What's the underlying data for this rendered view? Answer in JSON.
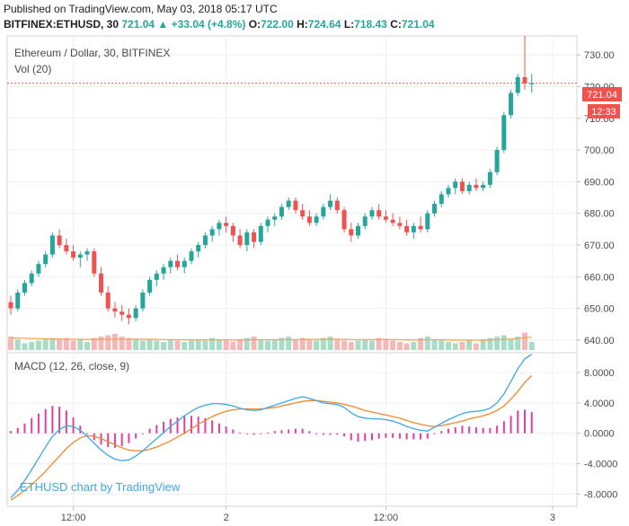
{
  "header": {
    "published": "Published on TradingView.com, May 03, 2018 05:17 UTC",
    "symbol": "BITFINEX:ETHUSD, 30",
    "last": "721.04",
    "change": "+33.04 (+4.8%)",
    "o_label": "O:",
    "o_value": "722.00",
    "h_label": "H:",
    "h_value": "724.64",
    "l_label": "L:",
    "l_value": "718.43",
    "c_label": "C:",
    "c_value": "721.04"
  },
  "main_pane": {
    "title": "Ethereum / Dollar, 30, BITFINEX",
    "vol_label": "Vol (20)",
    "price_tag": "721.04",
    "countdown_tag": "12:33"
  },
  "macd_pane": {
    "title": "MACD (12, 26, close, 9)",
    "watermark": "ETHUSD chart by TradingView"
  },
  "x_axis": {
    "ticks": [
      {
        "label": "12:00",
        "index": 9
      },
      {
        "label": "2",
        "index": 31
      },
      {
        "label": "12:00",
        "index": 54
      },
      {
        "label": "3",
        "index": 78
      }
    ]
  },
  "colors": {
    "up": "#26a69a",
    "down": "#ef5350",
    "vol_up": "#a8dcc7",
    "vol_down": "#f4b8b8",
    "vol_ma": "#f5a04a",
    "macd_line": "#3ea7e6",
    "signal_line": "#f2882d",
    "histogram": "#e040a0",
    "price_line": "#ef5350"
  },
  "chart_data": [
    {
      "type": "candlestick",
      "title": "Ethereum / Dollar, 30, BITFINEX",
      "ylim": [
        636,
        736
      ],
      "yticks": [
        640,
        650,
        660,
        670,
        680,
        690,
        700,
        710,
        720,
        730
      ],
      "ytick_labels": [
        "640.00",
        "650.00",
        "660.00",
        "670.00",
        "680.00",
        "690.00",
        "700.00",
        "710.00",
        "720.00",
        "730.00"
      ],
      "last_price": 721.04,
      "ohlc": [
        [
          652,
          654,
          648,
          650
        ],
        [
          650,
          656,
          649,
          655
        ],
        [
          655,
          659,
          654,
          658
        ],
        [
          658,
          662,
          657,
          661
        ],
        [
          661,
          665,
          660,
          664
        ],
        [
          664,
          668,
          663,
          667
        ],
        [
          667,
          674,
          666,
          673
        ],
        [
          673,
          675,
          669,
          670
        ],
        [
          670,
          672,
          667,
          668
        ],
        [
          668,
          670,
          665,
          666
        ],
        [
          666,
          668,
          663,
          667
        ],
        [
          667,
          669,
          665,
          668
        ],
        [
          668,
          669,
          660,
          661
        ],
        [
          661,
          663,
          654,
          655
        ],
        [
          655,
          657,
          649,
          650
        ],
        [
          650,
          652,
          647,
          649
        ],
        [
          649,
          651,
          646,
          648
        ],
        [
          648,
          650,
          645,
          647
        ],
        [
          647,
          651,
          646,
          650
        ],
        [
          650,
          656,
          649,
          655
        ],
        [
          655,
          660,
          654,
          659
        ],
        [
          659,
          662,
          657,
          661
        ],
        [
          661,
          664,
          659,
          663
        ],
        [
          663,
          666,
          661,
          665
        ],
        [
          665,
          667,
          662,
          663
        ],
        [
          663,
          666,
          661,
          665
        ],
        [
          665,
          669,
          664,
          668
        ],
        [
          668,
          671,
          666,
          670
        ],
        [
          670,
          674,
          669,
          673
        ],
        [
          673,
          676,
          671,
          675
        ],
        [
          675,
          678,
          673,
          677
        ],
        [
          677,
          679,
          674,
          676
        ],
        [
          676,
          677,
          671,
          673
        ],
        [
          673,
          675,
          669,
          670
        ],
        [
          670,
          675,
          668,
          674
        ],
        [
          674,
          675,
          669,
          671
        ],
        [
          671,
          677,
          670,
          676
        ],
        [
          676,
          679,
          674,
          678
        ],
        [
          678,
          680,
          676,
          679
        ],
        [
          679,
          683,
          678,
          682
        ],
        [
          682,
          685,
          681,
          684
        ],
        [
          684,
          685,
          680,
          681
        ],
        [
          681,
          683,
          678,
          679
        ],
        [
          679,
          681,
          676,
          677
        ],
        [
          677,
          680,
          676,
          679
        ],
        [
          679,
          683,
          678,
          682
        ],
        [
          682,
          686,
          681,
          684
        ],
        [
          684,
          685,
          680,
          681
        ],
        [
          681,
          682,
          674,
          675
        ],
        [
          675,
          677,
          671,
          673
        ],
        [
          673,
          677,
          672,
          676
        ],
        [
          676,
          680,
          675,
          679
        ],
        [
          679,
          682,
          678,
          681
        ],
        [
          681,
          683,
          678,
          679
        ],
        [
          679,
          681,
          677,
          678
        ],
        [
          678,
          680,
          676,
          677
        ],
        [
          677,
          679,
          675,
          676
        ],
        [
          676,
          678,
          673,
          674
        ],
        [
          674,
          677,
          672,
          676
        ],
        [
          676,
          679,
          674,
          675
        ],
        [
          675,
          681,
          674,
          680
        ],
        [
          680,
          684,
          679,
          683
        ],
        [
          683,
          687,
          682,
          686
        ],
        [
          686,
          689,
          685,
          688
        ],
        [
          688,
          691,
          686,
          690
        ],
        [
          690,
          691,
          686,
          687
        ],
        [
          687,
          690,
          686,
          689
        ],
        [
          689,
          691,
          687,
          688
        ],
        [
          688,
          690,
          687,
          689
        ],
        [
          689,
          694,
          688,
          693
        ],
        [
          693,
          701,
          692,
          700
        ],
        [
          700,
          712,
          699,
          711
        ],
        [
          711,
          719,
          710,
          718
        ],
        [
          718,
          724,
          717,
          723
        ],
        [
          723,
          736,
          719,
          721
        ],
        [
          721,
          724,
          718,
          721
        ]
      ]
    },
    {
      "type": "bar",
      "title": "Vol (20)",
      "values": [
        10,
        8,
        5,
        6,
        7,
        8,
        9,
        8,
        9,
        7,
        8,
        6,
        9,
        10,
        11,
        12,
        10,
        9,
        8,
        7,
        8,
        7,
        6,
        8,
        7,
        6,
        7,
        8,
        7,
        9,
        8,
        7,
        6,
        8,
        9,
        10,
        8,
        7,
        8,
        9,
        10,
        8,
        9,
        8,
        7,
        9,
        10,
        8,
        7,
        6,
        7,
        8,
        7,
        9,
        8,
        7,
        6,
        5,
        6,
        9,
        10,
        8,
        7,
        6,
        5,
        6,
        7,
        5,
        8,
        9,
        10,
        11,
        8,
        10,
        13,
        6
      ],
      "ma_values": [
        9,
        9,
        8.8,
        8.6,
        8.5,
        8.4,
        8.3,
        8.2,
        8.1,
        8,
        8,
        7.9,
        7.9,
        8,
        8,
        8.1,
        8.1,
        8.1,
        8.1,
        8,
        8,
        7.9,
        7.8,
        7.8,
        7.7,
        7.6,
        7.6,
        7.6,
        7.6,
        7.7,
        7.6,
        7.6,
        7.5,
        7.5,
        7.6,
        7.7,
        7.7,
        7.7,
        7.7,
        7.8,
        7.8,
        7.8,
        7.9,
        7.9,
        7.9,
        7.9,
        8,
        8,
        7.9,
        7.8,
        7.8,
        7.8,
        7.8,
        7.9,
        7.9,
        7.8,
        7.7,
        7.6,
        7.5,
        7.6,
        7.7,
        7.7,
        7.6,
        7.5,
        7.4,
        7.4,
        7.4,
        7.3,
        7.4,
        7.5,
        7.7,
        8,
        8.2,
        8.6,
        9.2,
        9.5
      ],
      "ylim": [
        0,
        60
      ]
    },
    {
      "type": "line",
      "title": "MACD (12, 26, close, 9)",
      "ylim": [
        -9.6,
        10.6
      ],
      "yticks": [
        -8,
        -4,
        0,
        4,
        8
      ],
      "ytick_labels": [
        "-8.0000",
        "-4.0000",
        "0.0000",
        "4.0000",
        "8.0000"
      ],
      "series": [
        {
          "name": "MACD",
          "values": [
            -8.5,
            -7.5,
            -6.2,
            -4.8,
            -3.3,
            -1.8,
            -0.4,
            0.5,
            1.0,
            0.9,
            0.4,
            -0.4,
            -1.3,
            -2.2,
            -2.9,
            -3.4,
            -3.6,
            -3.5,
            -3.0,
            -2.3,
            -1.5,
            -0.7,
            0.1,
            0.9,
            1.6,
            2.3,
            2.9,
            3.4,
            3.7,
            3.9,
            3.9,
            3.8,
            3.6,
            3.3,
            3.1,
            3.0,
            3.1,
            3.4,
            3.7,
            4.0,
            4.3,
            4.6,
            4.8,
            4.6,
            4.3,
            4.0,
            3.9,
            3.8,
            3.4,
            2.7,
            2.2,
            2.0,
            1.9,
            1.9,
            1.8,
            1.6,
            1.3,
            0.9,
            0.6,
            0.4,
            0.3,
            0.8,
            1.3,
            1.8,
            2.2,
            2.6,
            2.8,
            2.9,
            3.0,
            3.3,
            4.0,
            5.2,
            6.8,
            8.5,
            9.8,
            10.4
          ]
        },
        {
          "name": "Signal",
          "values": [
            -8.8,
            -8.2,
            -7.5,
            -6.8,
            -5.9,
            -5.0,
            -4.0,
            -3.0,
            -2.0,
            -1.2,
            -0.6,
            -0.3,
            -0.4,
            -0.7,
            -1.1,
            -1.5,
            -1.9,
            -2.2,
            -2.3,
            -2.3,
            -2.1,
            -1.8,
            -1.4,
            -1.0,
            -0.5,
            0.0,
            0.6,
            1.2,
            1.7,
            2.2,
            2.6,
            2.9,
            3.1,
            3.2,
            3.2,
            3.2,
            3.2,
            3.3,
            3.4,
            3.6,
            3.8,
            4.0,
            4.2,
            4.3,
            4.3,
            4.2,
            4.1,
            4.0,
            3.8,
            3.6,
            3.3,
            3.0,
            2.8,
            2.6,
            2.4,
            2.2,
            2.0,
            1.7,
            1.4,
            1.2,
            1.0,
            0.9,
            1.0,
            1.2,
            1.4,
            1.6,
            1.9,
            2.1,
            2.3,
            2.6,
            3.0,
            3.6,
            4.5,
            5.5,
            6.7,
            7.6
          ]
        },
        {
          "name": "Histogram",
          "values": [
            0.3,
            0.7,
            1.3,
            2.0,
            2.6,
            3.2,
            3.6,
            3.5,
            3.0,
            2.1,
            1.0,
            -0.1,
            -0.9,
            -1.5,
            -1.8,
            -1.9,
            -1.7,
            -1.3,
            -0.7,
            0.0,
            0.6,
            1.1,
            1.5,
            1.9,
            2.1,
            2.3,
            2.3,
            2.2,
            2.0,
            1.7,
            1.3,
            0.9,
            0.5,
            0.1,
            -0.1,
            -0.2,
            -0.1,
            0.1,
            0.3,
            0.4,
            0.5,
            0.6,
            0.6,
            0.3,
            0.0,
            -0.2,
            -0.2,
            -0.2,
            -0.4,
            -0.9,
            -1.1,
            -1.0,
            -0.9,
            -0.7,
            -0.6,
            -0.6,
            -0.7,
            -0.8,
            -0.8,
            -0.8,
            -0.7,
            -0.1,
            0.3,
            0.6,
            0.8,
            1.0,
            0.9,
            0.8,
            0.7,
            0.7,
            1.0,
            1.6,
            2.3,
            3.0,
            3.1,
            2.8
          ]
        }
      ]
    }
  ]
}
